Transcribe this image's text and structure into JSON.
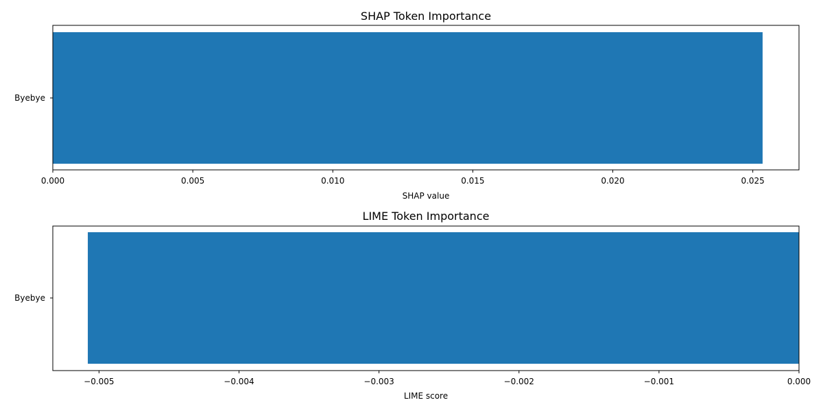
{
  "chart_data": [
    {
      "type": "bar",
      "orientation": "horizontal",
      "title": "SHAP Token Importance",
      "xlabel": "SHAP value",
      "ylabel": "",
      "categories": [
        "Byebye"
      ],
      "values": [
        0.02535
      ],
      "xlim": [
        0,
        0.02665
      ],
      "xticks": [
        "0.000",
        "0.005",
        "0.010",
        "0.015",
        "0.020",
        "0.025"
      ],
      "xtick_values": [
        0,
        0.005,
        0.01,
        0.015,
        0.02,
        0.025
      ],
      "bar_color": "#1f77b4",
      "grid": false
    },
    {
      "type": "bar",
      "orientation": "horizontal",
      "title": "LIME Token Importance",
      "xlabel": "LIME score",
      "ylabel": "",
      "categories": [
        "Byebye"
      ],
      "values": [
        -0.00508
      ],
      "xlim": [
        -0.00533,
        0
      ],
      "xticks": [
        "−0.005",
        "−0.004",
        "−0.003",
        "−0.002",
        "−0.001",
        "0.000"
      ],
      "xtick_values": [
        -0.005,
        -0.004,
        -0.003,
        -0.002,
        -0.001,
        0
      ],
      "bar_color": "#1f77b4",
      "grid": false
    }
  ]
}
